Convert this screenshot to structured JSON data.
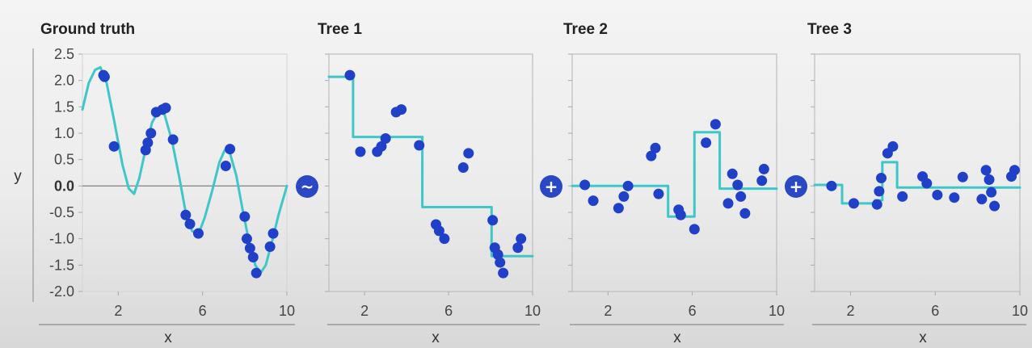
{
  "colors": {
    "curve": "#3fc6c8",
    "point": "#2040c8",
    "operator_fill": "#2a48c4",
    "frame": "#bdbdbd",
    "zero_line": "#8a8a8a"
  },
  "operators": [
    {
      "symbol": "~",
      "icon": "tilde-icon"
    },
    {
      "symbol": "+",
      "icon": "plus-icon"
    },
    {
      "symbol": "+",
      "icon": "plus-icon"
    }
  ],
  "chart_data": [
    {
      "type": "scatter",
      "title": "Ground truth",
      "xlabel": "x",
      "ylabel": "y",
      "xlim": [
        0.3,
        10
      ],
      "ylim": [
        -2.0,
        2.5
      ],
      "xticks": [
        {
          "value": 2,
          "label": "2"
        },
        {
          "value": 6,
          "label": "6"
        },
        {
          "value": 10,
          "label": "10"
        }
      ],
      "yticks": [
        {
          "value": 2.5,
          "label": "2.5"
        },
        {
          "value": 2.0,
          "label": "2.0"
        },
        {
          "value": 1.5,
          "label": "1.5"
        },
        {
          "value": 1.0,
          "label": "1.0"
        },
        {
          "value": 0.5,
          "label": "0.5"
        },
        {
          "value": 0.0,
          "label": "0.0"
        },
        {
          "value": -0.5,
          "label": "-0.5"
        },
        {
          "value": -1.0,
          "label": "-1.0"
        },
        {
          "value": -1.5,
          "label": "-1.5"
        },
        {
          "value": -2.0,
          "label": "-2.0"
        }
      ],
      "zero_line": true,
      "points": [
        [
          1.3,
          2.1
        ],
        [
          1.35,
          2.07
        ],
        [
          1.8,
          0.75
        ],
        [
          3.3,
          0.68
        ],
        [
          3.4,
          0.82
        ],
        [
          3.55,
          1.0
        ],
        [
          3.8,
          1.4
        ],
        [
          4.1,
          1.45
        ],
        [
          4.25,
          1.48
        ],
        [
          4.6,
          0.88
        ],
        [
          5.2,
          -0.55
        ],
        [
          5.4,
          -0.72
        ],
        [
          5.8,
          -0.9
        ],
        [
          7.1,
          0.38
        ],
        [
          7.3,
          0.7
        ],
        [
          8.0,
          -0.58
        ],
        [
          8.1,
          -1.0
        ],
        [
          8.25,
          -1.18
        ],
        [
          8.4,
          -1.35
        ],
        [
          8.55,
          -1.65
        ],
        [
          9.2,
          -1.15
        ],
        [
          9.35,
          -0.9
        ]
      ],
      "curve": [
        [
          0.3,
          1.45
        ],
        [
          0.6,
          1.95
        ],
        [
          0.9,
          2.2
        ],
        [
          1.15,
          2.25
        ],
        [
          1.45,
          1.95
        ],
        [
          1.8,
          1.25
        ],
        [
          2.2,
          0.4
        ],
        [
          2.5,
          -0.05
        ],
        [
          2.75,
          -0.15
        ],
        [
          3.0,
          0.15
        ],
        [
          3.3,
          0.7
        ],
        [
          3.6,
          1.2
        ],
        [
          3.9,
          1.42
        ],
        [
          4.2,
          1.35
        ],
        [
          4.55,
          0.85
        ],
        [
          4.9,
          0.15
        ],
        [
          5.2,
          -0.5
        ],
        [
          5.5,
          -0.85
        ],
        [
          5.8,
          -0.92
        ],
        [
          6.1,
          -0.6
        ],
        [
          6.45,
          -0.1
        ],
        [
          6.8,
          0.45
        ],
        [
          7.05,
          0.68
        ],
        [
          7.3,
          0.62
        ],
        [
          7.6,
          0.2
        ],
        [
          7.9,
          -0.45
        ],
        [
          8.2,
          -1.05
        ],
        [
          8.5,
          -1.5
        ],
        [
          8.75,
          -1.65
        ],
        [
          9.0,
          -1.5
        ],
        [
          9.3,
          -1.05
        ],
        [
          9.6,
          -0.55
        ],
        [
          10.0,
          0.0
        ]
      ]
    },
    {
      "type": "scatter",
      "title": "Tree 1",
      "xlabel": "x",
      "xlim": [
        0.3,
        10
      ],
      "ylim": [
        -2.0,
        2.5
      ],
      "xticks": [
        {
          "value": 2,
          "label": "2"
        },
        {
          "value": 6,
          "label": "6"
        },
        {
          "value": 10,
          "label": "10"
        }
      ],
      "yticks": [
        {
          "value": 2.5
        },
        {
          "value": 2.0
        },
        {
          "value": 1.5
        },
        {
          "value": 1.0
        },
        {
          "value": 0.5
        },
        {
          "value": 0.0
        },
        {
          "value": -0.5
        },
        {
          "value": -1.0
        },
        {
          "value": -1.5
        },
        {
          "value": -2.0
        }
      ],
      "zero_line": false,
      "points": [
        [
          1.3,
          2.1
        ],
        [
          1.8,
          0.65
        ],
        [
          2.6,
          0.65
        ],
        [
          2.8,
          0.75
        ],
        [
          3.0,
          0.9
        ],
        [
          3.5,
          1.4
        ],
        [
          3.75,
          1.45
        ],
        [
          4.6,
          0.77
        ],
        [
          5.4,
          -0.73
        ],
        [
          5.55,
          -0.85
        ],
        [
          5.8,
          -1.0
        ],
        [
          6.7,
          0.35
        ],
        [
          6.95,
          0.62
        ],
        [
          8.1,
          -0.65
        ],
        [
          8.2,
          -1.17
        ],
        [
          8.35,
          -1.3
        ],
        [
          8.45,
          -1.45
        ],
        [
          8.6,
          -1.65
        ],
        [
          9.3,
          -1.17
        ],
        [
          9.45,
          -1.0
        ]
      ],
      "curve": [
        [
          0.3,
          2.07
        ],
        [
          1.45,
          2.07
        ],
        [
          1.45,
          0.93
        ],
        [
          4.75,
          0.93
        ],
        [
          4.75,
          -0.4
        ],
        [
          8.05,
          -0.4
        ],
        [
          8.05,
          -1.33
        ],
        [
          10.0,
          -1.33
        ]
      ]
    },
    {
      "type": "scatter",
      "title": "Tree 2",
      "xlabel": "x",
      "xlim": [
        0.3,
        10
      ],
      "ylim": [
        -2.0,
        2.5
      ],
      "xticks": [
        {
          "value": 2,
          "label": "2"
        },
        {
          "value": 6,
          "label": "6"
        },
        {
          "value": 10,
          "label": "10"
        }
      ],
      "yticks": [
        {
          "value": 2.5
        },
        {
          "value": 2.0
        },
        {
          "value": 1.5
        },
        {
          "value": 1.0
        },
        {
          "value": 0.5
        },
        {
          "value": 0.0
        },
        {
          "value": -0.5
        },
        {
          "value": -1.0
        },
        {
          "value": -1.5
        },
        {
          "value": -2.0
        }
      ],
      "zero_line": false,
      "points": [
        [
          0.9,
          0.02
        ],
        [
          1.3,
          -0.28
        ],
        [
          2.5,
          -0.42
        ],
        [
          2.75,
          -0.2
        ],
        [
          2.95,
          0.0
        ],
        [
          4.05,
          0.57
        ],
        [
          4.25,
          0.72
        ],
        [
          4.4,
          -0.15
        ],
        [
          5.35,
          -0.45
        ],
        [
          5.45,
          -0.55
        ],
        [
          6.1,
          -0.82
        ],
        [
          6.65,
          0.82
        ],
        [
          7.1,
          1.17
        ],
        [
          7.7,
          -0.33
        ],
        [
          7.9,
          0.23
        ],
        [
          8.15,
          0.02
        ],
        [
          8.3,
          -0.2
        ],
        [
          8.5,
          -0.52
        ],
        [
          9.3,
          0.1
        ],
        [
          9.4,
          0.32
        ]
      ],
      "curve": [
        [
          0.3,
          0.0
        ],
        [
          4.85,
          0.0
        ],
        [
          4.85,
          -0.58
        ],
        [
          6.1,
          -0.58
        ],
        [
          6.1,
          1.02
        ],
        [
          7.3,
          1.02
        ],
        [
          7.3,
          -0.05
        ],
        [
          10.0,
          -0.05
        ]
      ]
    },
    {
      "type": "scatter",
      "title": "Tree 3",
      "xlabel": "x",
      "xlim": [
        0.3,
        10
      ],
      "ylim": [
        -2.0,
        2.5
      ],
      "xticks": [
        {
          "value": 2,
          "label": "2"
        },
        {
          "value": 6,
          "label": "6"
        },
        {
          "value": 10,
          "label": "10"
        }
      ],
      "yticks": [
        {
          "value": 2.5
        },
        {
          "value": 2.0
        },
        {
          "value": 1.5
        },
        {
          "value": 1.0
        },
        {
          "value": 0.5
        },
        {
          "value": 0.0
        },
        {
          "value": -0.5
        },
        {
          "value": -1.0
        },
        {
          "value": -1.5
        },
        {
          "value": -2.0
        }
      ],
      "zero_line": false,
      "points": [
        [
          1.1,
          0.0
        ],
        [
          2.15,
          -0.33
        ],
        [
          3.25,
          -0.35
        ],
        [
          3.35,
          -0.1
        ],
        [
          3.45,
          0.15
        ],
        [
          3.75,
          0.62
        ],
        [
          4.0,
          0.75
        ],
        [
          4.45,
          -0.2
        ],
        [
          5.4,
          0.18
        ],
        [
          5.6,
          0.05
        ],
        [
          6.1,
          -0.17
        ],
        [
          6.9,
          -0.22
        ],
        [
          7.3,
          0.17
        ],
        [
          8.2,
          -0.25
        ],
        [
          8.4,
          0.3
        ],
        [
          8.55,
          0.12
        ],
        [
          8.65,
          -0.12
        ],
        [
          8.8,
          -0.38
        ],
        [
          9.6,
          0.18
        ],
        [
          9.75,
          0.3
        ]
      ],
      "curve": [
        [
          0.3,
          0.02
        ],
        [
          1.6,
          0.02
        ],
        [
          1.6,
          -0.33
        ],
        [
          3.15,
          -0.33
        ],
        [
          3.15,
          -0.27
        ],
        [
          3.5,
          -0.27
        ],
        [
          3.5,
          0.45
        ],
        [
          4.2,
          0.45
        ],
        [
          4.2,
          -0.03
        ],
        [
          10.0,
          -0.03
        ]
      ]
    }
  ]
}
